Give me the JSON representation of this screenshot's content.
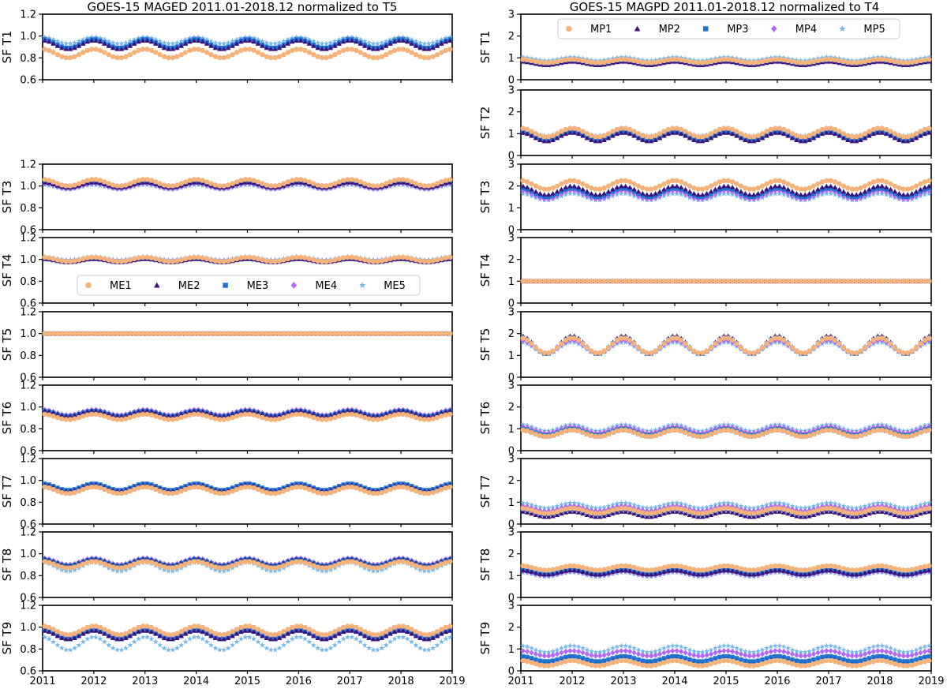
{
  "left_title": "GOES-15 MAGED  2011.01-2018.12 normalized to T5",
  "right_title": "GOES-15 MAGPD  2011.01-2018.12 normalized to T4",
  "colors": {
    "c1": "#f5b27a",
    "c2": "#3b117a",
    "c3": "#1f74d2",
    "c4": "#b46af0",
    "c5": "#74b8ea"
  },
  "chart_data": [
    {
      "type": "scatter",
      "instrument": "MAGED",
      "title": "GOES-15 MAGED  2011.01-2018.12 normalized to T5",
      "xlim": [
        2011,
        2019
      ],
      "x_ticks": [
        "2011",
        "2012",
        "2013",
        "2014",
        "2015",
        "2016",
        "2017",
        "2018",
        "2019"
      ],
      "ylim": [
        0.6,
        1.2
      ],
      "y_ticks": [
        "0.6",
        "0.8",
        "1.0",
        "1.2"
      ],
      "legend": {
        "location": "lower center of SF T4 panel",
        "entries": [
          "ME1",
          "ME2",
          "ME3",
          "ME4",
          "ME5"
        ],
        "markers": [
          "circle",
          "triangle",
          "square",
          "diamond",
          "star"
        ]
      },
      "sampling": "monthly, 2011.01-2018.12",
      "panels": [
        {
          "ylabel": "SF T1",
          "series_mean": [
            0.84,
            0.92,
            0.93,
            0.93,
            0.96
          ],
          "seasonal_amplitude": [
            0.04,
            0.04,
            0.04,
            0.04,
            0.03
          ]
        },
        {
          "ylabel": "",
          "empty": true
        },
        {
          "ylabel": "SF T3",
          "series_mean": [
            1.03,
            1.01,
            1.01,
            1.0,
            0.99
          ],
          "seasonal_amplitude": [
            0.03,
            0.025,
            0.025,
            0.025,
            0.02
          ]
        },
        {
          "ylabel": "SF T4",
          "series_mean": [
            1.0,
            0.99,
            0.99,
            1.0,
            1.01
          ],
          "seasonal_amplitude": [
            0.02,
            0.015,
            0.015,
            0.015,
            0.015
          ]
        },
        {
          "ylabel": "SF T5",
          "series_mean": [
            1.0,
            1.0,
            1.0,
            1.0,
            1.0
          ],
          "seasonal_amplitude": [
            0,
            0,
            0,
            0,
            0
          ]
        },
        {
          "ylabel": "SF T6",
          "series_mean": [
            0.91,
            0.94,
            0.94,
            0.95,
            0.93
          ],
          "seasonal_amplitude": [
            0.025,
            0.025,
            0.025,
            0.025,
            0.025
          ]
        },
        {
          "ylabel": "SF T7",
          "series_mean": [
            0.91,
            0.93,
            0.94,
            0.93,
            0.91
          ],
          "seasonal_amplitude": [
            0.03,
            0.03,
            0.03,
            0.03,
            0.03
          ]
        },
        {
          "ylabel": "SF T8",
          "series_mean": [
            0.9,
            0.92,
            0.92,
            0.93,
            0.88
          ],
          "seasonal_amplitude": [
            0.03,
            0.03,
            0.03,
            0.03,
            0.04
          ]
        },
        {
          "ylabel": "SF T9",
          "series_mean": [
            0.97,
            0.93,
            0.93,
            0.95,
            0.85
          ],
          "seasonal_amplitude": [
            0.04,
            0.04,
            0.04,
            0.04,
            0.06
          ]
        }
      ]
    },
    {
      "type": "scatter",
      "instrument": "MAGPD",
      "title": "GOES-15 MAGPD  2011.01-2018.12 normalized to T4",
      "xlim": [
        2011,
        2019
      ],
      "x_ticks": [
        "2011",
        "2012",
        "2013",
        "2014",
        "2015",
        "2016",
        "2017",
        "2018",
        "2019"
      ],
      "ylim": [
        0,
        3
      ],
      "y_ticks": [
        "0",
        "1",
        "2",
        "3"
      ],
      "legend": {
        "location": "upper center of SF T1 panel",
        "entries": [
          "MP1",
          "MP2",
          "MP3",
          "MP4",
          "MP5"
        ],
        "markers": [
          "circle",
          "triangle",
          "square",
          "diamond",
          "star"
        ]
      },
      "sampling": "monthly, 2011.01-2018.12",
      "panels": [
        {
          "ylabel": "SF T1",
          "series_mean": [
            0.85,
            0.75,
            0.8,
            0.85,
            0.95
          ],
          "seasonal_amplitude": [
            0.08,
            0.08,
            0.08,
            0.08,
            0.08
          ]
        },
        {
          "ylabel": "SF T2",
          "series_mean": [
            1.05,
            0.85,
            0.9,
            0.95,
            1.05
          ],
          "seasonal_amplitude": [
            0.2,
            0.2,
            0.2,
            0.2,
            0.15
          ]
        },
        {
          "ylabel": "SF T3",
          "series_mean": [
            2.05,
            1.8,
            1.7,
            1.6,
            1.5
          ],
          "seasonal_amplitude": [
            0.2,
            0.2,
            0.2,
            0.2,
            0.15
          ]
        },
        {
          "ylabel": "SF T4",
          "series_mean": [
            1.0,
            1.0,
            1.0,
            1.0,
            1.0
          ],
          "seasonal_amplitude": [
            0,
            0,
            0,
            0,
            0
          ]
        },
        {
          "ylabel": "SF T5",
          "series_mean": [
            1.45,
            1.5,
            1.45,
            1.4,
            1.35
          ],
          "seasonal_amplitude": [
            0.35,
            0.4,
            0.38,
            0.3,
            0.25
          ]
        },
        {
          "ylabel": "SF T6",
          "series_mean": [
            0.8,
            0.8,
            0.85,
            0.95,
            1.05
          ],
          "seasonal_amplitude": [
            0.15,
            0.15,
            0.15,
            0.15,
            0.15
          ]
        },
        {
          "ylabel": "SF T7",
          "series_mean": [
            0.6,
            0.45,
            0.55,
            0.7,
            0.85
          ],
          "seasonal_amplitude": [
            0.12,
            0.12,
            0.12,
            0.12,
            0.12
          ]
        },
        {
          "ylabel": "SF T8",
          "series_mean": [
            1.35,
            1.15,
            1.15,
            1.1,
            1.05
          ],
          "seasonal_amplitude": [
            0.1,
            0.1,
            0.1,
            0.1,
            0.1
          ]
        },
        {
          "ylabel": "SF T9",
          "series_mean": [
            0.35,
            0.4,
            0.55,
            0.8,
            1.0
          ],
          "seasonal_amplitude": [
            0.12,
            0.12,
            0.12,
            0.12,
            0.15
          ]
        }
      ]
    }
  ]
}
